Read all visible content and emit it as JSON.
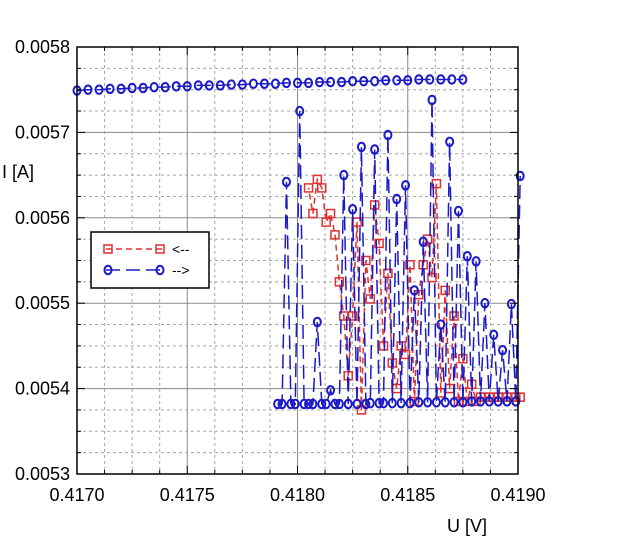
{
  "chart_data": {
    "type": "line",
    "xlabel": "U [V]",
    "ylabel": "I [A]",
    "xlim": [
      0.417,
      0.419
    ],
    "ylim": [
      0.0053,
      0.0058
    ],
    "x_ticks": [
      "0.4170",
      "0.4175",
      "0.4180",
      "0.4185",
      "0.4190"
    ],
    "y_ticks": [
      "0.0053",
      "0.0054",
      "0.0055",
      "0.0056",
      "0.0057",
      "0.0058"
    ],
    "grid": true,
    "legend_position": "left",
    "series": [
      {
        "name": "<--",
        "color": "#e03030",
        "marker": "square",
        "dash": "6,4",
        "x": [
          0.41901,
          0.41899,
          0.41897,
          0.41895,
          0.41893,
          0.41891,
          0.41889,
          0.41887,
          0.41885,
          0.41883,
          0.41881,
          0.41879,
          0.41877,
          0.41875,
          0.41873,
          0.41871,
          0.41869,
          0.41867,
          0.41865,
          0.41863,
          0.41861,
          0.41859,
          0.41857,
          0.41855,
          0.41853,
          0.41851,
          0.41849,
          0.41847,
          0.41845,
          0.41843,
          0.41841,
          0.41839,
          0.41837,
          0.41835,
          0.41833,
          0.41831,
          0.41829,
          0.41827,
          0.41825,
          0.41823,
          0.41821,
          0.41819,
          0.41817,
          0.41815,
          0.41813,
          0.41811,
          0.41809,
          0.41807,
          0.41805
        ],
        "y": [
          0.00539,
          0.00539,
          0.00539,
          0.00539,
          0.00539,
          0.00539,
          0.00539,
          0.00539,
          0.00539,
          0.00539,
          0.005385,
          0.005405,
          0.005385,
          0.005435,
          0.005385,
          0.005485,
          0.0054,
          0.005515,
          0.005395,
          0.00564,
          0.00553,
          0.005575,
          0.005545,
          0.00551,
          0.005385,
          0.005545,
          0.00544,
          0.00545,
          0.0054,
          0.00543,
          0.005535,
          0.00545,
          0.00557,
          0.005615,
          0.005505,
          0.00555,
          0.005375,
          0.005595,
          0.005485,
          0.005415,
          0.005485,
          0.005525,
          0.00558,
          0.005605,
          0.005595,
          0.005635,
          0.005645,
          0.005605,
          0.005635
        ]
      },
      {
        "name": "-->",
        "color": "#1a1ac8",
        "marker": "circle",
        "dash": "14,6",
        "x": [
          0.417,
          0.41705,
          0.4171,
          0.41715,
          0.4172,
          0.41725,
          0.4173,
          0.41735,
          0.4174,
          0.41745,
          0.4175,
          0.41755,
          0.4176,
          0.41765,
          0.4177,
          0.41775,
          0.4178,
          0.41785,
          0.4179,
          0.41795,
          0.418,
          0.41805,
          0.4181,
          0.41815,
          0.4182,
          0.41825,
          0.4183,
          0.41835,
          0.4184,
          0.41845,
          0.4185,
          0.41855,
          0.4186,
          0.41865,
          0.4187,
          0.41875
        ],
        "y": [
          0.005749,
          0.00575,
          0.00575,
          0.005751,
          0.005751,
          0.005752,
          0.005752,
          0.005753,
          0.005753,
          0.005754,
          0.005754,
          0.005755,
          0.005755,
          0.005755,
          0.005756,
          0.005756,
          0.005757,
          0.005757,
          0.005757,
          0.005758,
          0.005758,
          0.005758,
          0.005759,
          0.005759,
          0.005759,
          0.00576,
          0.00576,
          0.00576,
          0.005761,
          0.005761,
          0.005761,
          0.005762,
          0.005762,
          0.005762,
          0.005762,
          0.005762
        ]
      },
      {
        "name": "",
        "color": "#1a1ac8",
        "marker": "circle",
        "dash": "14,6",
        "x": [
          0.41791,
          0.41793,
          0.41795,
          0.41797,
          0.41799,
          0.41801,
          0.41803,
          0.41805,
          0.41807,
          0.41809,
          0.41811,
          0.41813,
          0.41815,
          0.41817,
          0.41819,
          0.41821,
          0.41823,
          0.41825,
          0.41827,
          0.41829,
          0.41831,
          0.41833,
          0.41835,
          0.41837,
          0.41839,
          0.41841,
          0.41843,
          0.41845,
          0.41847,
          0.41849,
          0.41851,
          0.41853,
          0.41855,
          0.41857,
          0.41859,
          0.41861,
          0.41863,
          0.41865,
          0.41867,
          0.41869,
          0.41871,
          0.41873,
          0.41875,
          0.41877,
          0.41879,
          0.41881,
          0.41883,
          0.41885,
          0.41887,
          0.41889,
          0.41891,
          0.41893,
          0.41895,
          0.41897,
          0.41899,
          0.41901
        ],
        "y": [
          0.005382,
          0.005382,
          0.005642,
          0.005382,
          0.005382,
          0.005725,
          0.005382,
          0.005382,
          0.005382,
          0.005478,
          0.005382,
          0.005382,
          0.005398,
          0.005382,
          0.005382,
          0.00565,
          0.005382,
          0.00561,
          0.005382,
          0.005683,
          0.005382,
          0.005383,
          0.00568,
          0.005383,
          0.005383,
          0.005697,
          0.005383,
          0.005622,
          0.005383,
          0.005638,
          0.005383,
          0.005515,
          0.005384,
          0.005572,
          0.005384,
          0.005738,
          0.005384,
          0.005475,
          0.005384,
          0.005689,
          0.005384,
          0.005608,
          0.005384,
          0.005555,
          0.005385,
          0.005549,
          0.005385,
          0.0055,
          0.005385,
          0.005463,
          0.005385,
          0.005445,
          0.005385,
          0.005499,
          0.005385,
          0.005649
        ]
      }
    ]
  }
}
